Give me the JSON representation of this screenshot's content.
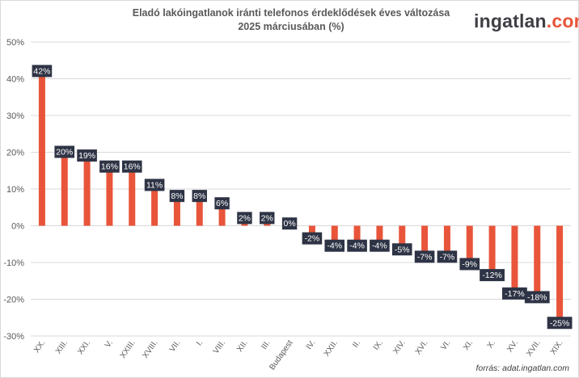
{
  "header": {
    "title_line1": "Eladó lakóingatlanok iránti telefonos érdeklődések éves változása",
    "title_line2": "2025 márciusában (%)",
    "brand_main": "ingatlan",
    "brand_domain": ".com"
  },
  "footer": {
    "source": "forrás: adat.ingatlan.com"
  },
  "colors": {
    "bar": "#e8553a",
    "label_bg": "#2e3445",
    "grid": "#d9d9d9"
  },
  "chart_data": {
    "type": "bar",
    "title": "Eladó lakóingatlanok iránti telefonos érdeklődések éves változása 2025 márciusában (%)",
    "categories": [
      "XX.",
      "XIII.",
      "XXI.",
      "V.",
      "XXIII.",
      "XVIII.",
      "VII.",
      "I.",
      "VIII.",
      "XII.",
      "III.",
      "Budapest",
      "IV.",
      "XXII.",
      "II.",
      "IX.",
      "XIV.",
      "XVI.",
      "VI.",
      "XI.",
      "X.",
      "XV.",
      "XVII.",
      "XIX."
    ],
    "values": [
      42,
      20,
      19,
      16,
      16,
      11,
      8,
      8,
      6,
      2,
      2,
      0.5,
      -2,
      -4,
      -4,
      -4,
      -5,
      -7,
      -7,
      -9,
      -12,
      -17,
      -18,
      -25
    ],
    "data_labels": [
      "42%",
      "20%",
      "19%",
      "16%",
      "16%",
      "11%",
      "8%",
      "8%",
      "6%",
      "2%",
      "2%",
      "0%",
      "-2%",
      "-4%",
      "-4%",
      "-4%",
      "-5%",
      "-7%",
      "-7%",
      "-9%",
      "-12%",
      "-17%",
      "-18%",
      "-25%"
    ],
    "ylim": [
      -30,
      50
    ],
    "yticks": [
      -30,
      -20,
      -10,
      0,
      10,
      20,
      30,
      40,
      50
    ],
    "ytick_labels": [
      "-30%",
      "-20%",
      "-10%",
      "0%",
      "10%",
      "20%",
      "30%",
      "40%",
      "50%"
    ],
    "grid": true,
    "legend": "none"
  }
}
